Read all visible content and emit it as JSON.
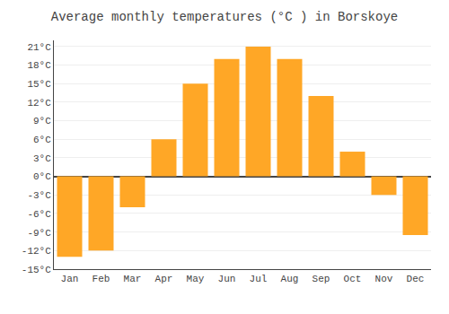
{
  "chart_data": {
    "type": "bar",
    "title": "Average monthly temperatures (°C ) in Borskoye",
    "categories": [
      "Jan",
      "Feb",
      "Mar",
      "Apr",
      "May",
      "Jun",
      "Jul",
      "Aug",
      "Sep",
      "Oct",
      "Nov",
      "Dec"
    ],
    "values": [
      -13,
      -12,
      -5,
      6,
      15,
      19,
      21,
      19,
      13,
      4,
      -3,
      -9.5
    ],
    "color": "#FFA726",
    "ylim": [
      -15,
      22
    ],
    "yticks": [
      {
        "value": -15,
        "label": "-15°C"
      },
      {
        "value": -12,
        "label": "-12°C"
      },
      {
        "value": -9,
        "label": "-9°C"
      },
      {
        "value": -6,
        "label": "-6°C"
      },
      {
        "value": -3,
        "label": "-3°C"
      },
      {
        "value": 0,
        "label": "0°C"
      },
      {
        "value": 3,
        "label": "3°C"
      },
      {
        "value": 6,
        "label": "6°C"
      },
      {
        "value": 9,
        "label": "9°C"
      },
      {
        "value": 12,
        "label": "12°C"
      },
      {
        "value": 15,
        "label": "15°C"
      },
      {
        "value": 18,
        "label": "18°C"
      },
      {
        "value": 21,
        "label": "21°C"
      }
    ],
    "grid": true
  }
}
